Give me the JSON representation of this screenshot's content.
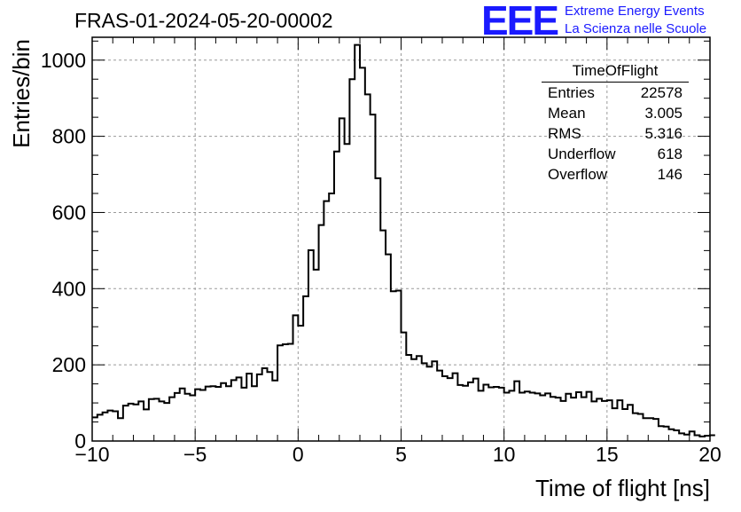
{
  "title": "FRAS-01-2024-05-20-00002",
  "logo": {
    "mark": "EEE",
    "line1": "Extreme Energy Events",
    "line2": "La Scienza nelle Scuole",
    "color": "#1a1aff"
  },
  "stats_box": {
    "title": "TimeOfFlight",
    "rows": [
      {
        "label": "Entries",
        "value": "22578"
      },
      {
        "label": "Mean",
        "value": "3.005"
      },
      {
        "label": "RMS",
        "value": "5.316"
      },
      {
        "label": "Underflow",
        "value": "618"
      },
      {
        "label": "Overflow",
        "value": "146"
      }
    ]
  },
  "chart_data": {
    "type": "histogram",
    "title": "FRAS-01-2024-05-20-00002",
    "xlabel": "Time of flight [ns]",
    "ylabel": "Entries/bin",
    "xlim": [
      -10,
      20
    ],
    "ylim": [
      0,
      1060
    ],
    "bin_width": 0.25,
    "grid": true,
    "x_ticks": [
      -10,
      -5,
      0,
      5,
      10,
      15,
      20
    ],
    "x_tick_labels": [
      "−10",
      "−5",
      "0",
      "5",
      "10",
      "15",
      "20"
    ],
    "y_ticks": [
      0,
      200,
      400,
      600,
      800,
      1000
    ],
    "y_tick_labels": [
      "0",
      "200",
      "400",
      "600",
      "800",
      "1000"
    ],
    "values": [
      62,
      69,
      75,
      80,
      78,
      60,
      93,
      98,
      96,
      104,
      83,
      110,
      111,
      104,
      100,
      115,
      126,
      138,
      124,
      120,
      136,
      134,
      143,
      144,
      142,
      152,
      144,
      160,
      167,
      140,
      177,
      144,
      175,
      191,
      181,
      159,
      251,
      254,
      255,
      330,
      303,
      380,
      501,
      450,
      567,
      630,
      650,
      760,
      847,
      780,
      950,
      1040,
      980,
      910,
      857,
      690,
      553,
      490,
      393,
      395,
      285,
      226,
      215,
      223,
      204,
      195,
      209,
      185,
      170,
      165,
      178,
      147,
      145,
      154,
      164,
      132,
      148,
      141,
      142,
      140,
      127,
      132,
      157,
      127,
      130,
      127,
      125,
      120,
      125,
      116,
      114,
      105,
      124,
      114,
      128,
      115,
      129,
      104,
      111,
      105,
      107,
      86,
      107,
      84,
      95,
      73,
      71,
      60,
      60,
      58,
      39,
      38,
      31,
      28,
      20,
      17,
      25,
      15,
      12,
      14,
      15
    ]
  }
}
